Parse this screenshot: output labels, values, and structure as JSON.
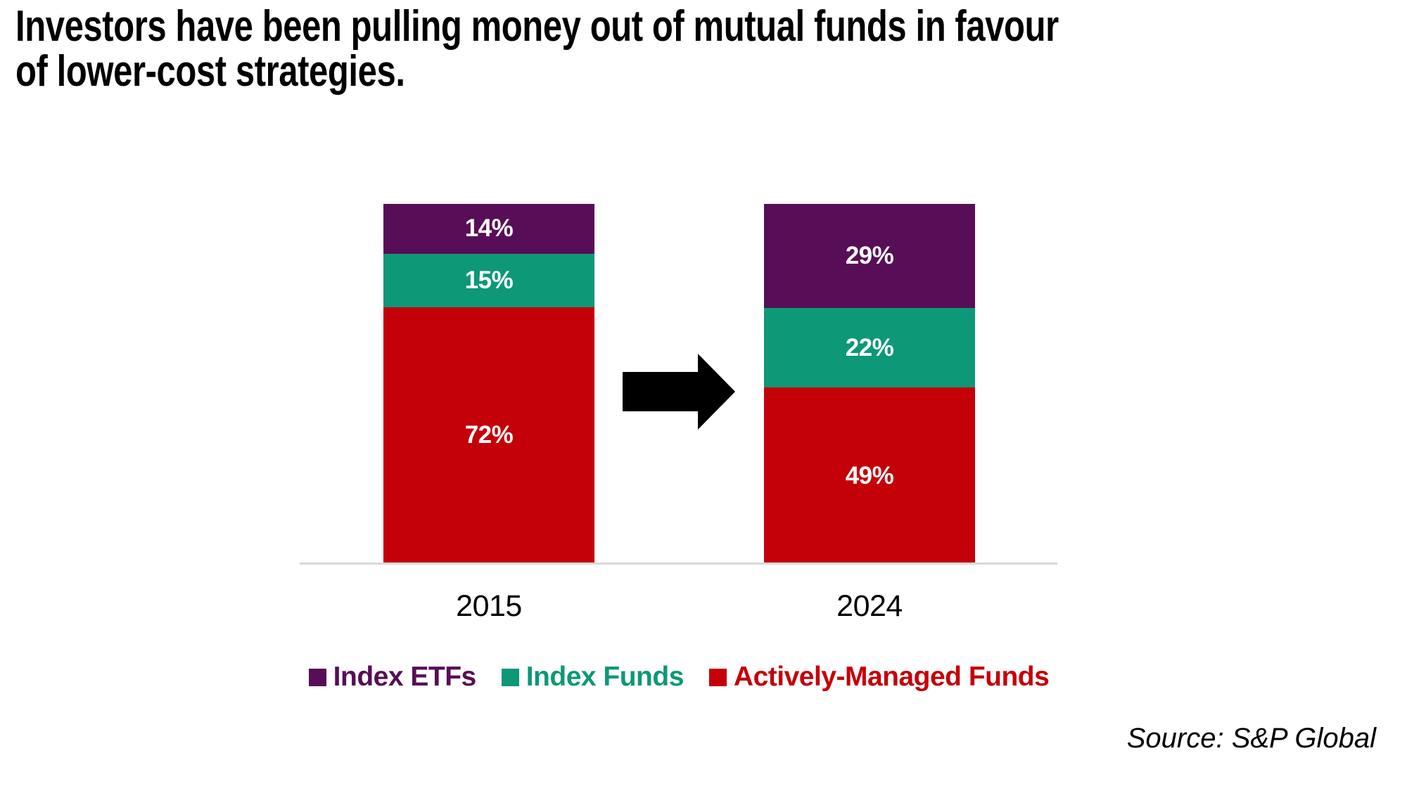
{
  "title_lines": [
    "Investors have been pulling money out of mutual funds in favour",
    "of lower-cost strategies."
  ],
  "source": "Source: S&P Global",
  "colors": {
    "index_etfs": "#570E56",
    "index_funds": "#0D9878",
    "actively_managed_funds": "#C40009",
    "segment_label_text": "#FFFFFF",
    "axis_line": "#D9D9D9",
    "title_text": "#000000",
    "arrow": "#000000"
  },
  "chart_data": {
    "type": "bar",
    "variant": "stacked-percent-columns",
    "categories": [
      "2015",
      "2024"
    ],
    "series": [
      {
        "name": "Index ETFs",
        "color": "#570E56",
        "values": [
          14,
          29
        ]
      },
      {
        "name": "Index Funds",
        "color": "#0D9878",
        "values": [
          15,
          22
        ]
      },
      {
        "name": "Actively-Managed Funds",
        "color": "#C40009",
        "values": [
          72,
          49
        ]
      }
    ],
    "value_suffix": "%",
    "stack_order_top_to_bottom": [
      "Index ETFs",
      "Index Funds",
      "Actively-Managed Funds"
    ],
    "legend_position": "bottom",
    "grid": false,
    "y_axis_visible": false,
    "baseline_visible": true
  }
}
